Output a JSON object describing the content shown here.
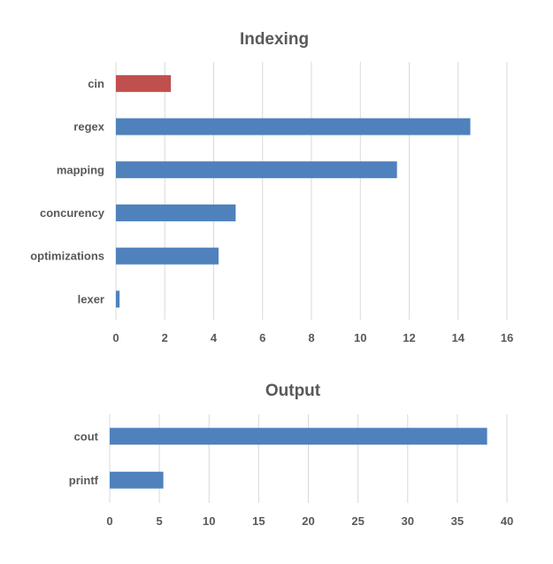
{
  "chart_data": [
    {
      "type": "bar",
      "orientation": "horizontal",
      "title": "Indexing",
      "categories": [
        "cin",
        "regex",
        "mapping",
        "concurency",
        "optimizations",
        "lexer"
      ],
      "values": [
        2.25,
        14.5,
        11.5,
        4.9,
        4.2,
        0.15
      ],
      "colors": [
        "#c0504d",
        "#4f81bd",
        "#4f81bd",
        "#4f81bd",
        "#4f81bd",
        "#4f81bd"
      ],
      "xlim": [
        0,
        16
      ],
      "ticks": [
        "0",
        "2",
        "4",
        "6",
        "8",
        "10",
        "12",
        "14",
        "16"
      ],
      "grid": true,
      "legend": "none"
    },
    {
      "type": "bar",
      "orientation": "horizontal",
      "title": "Output",
      "categories": [
        "cout",
        "printf"
      ],
      "values": [
        38,
        5.4
      ],
      "colors": [
        "#4f81bd",
        "#4f81bd"
      ],
      "xlim": [
        0,
        40
      ],
      "ticks": [
        "0",
        "5",
        "10",
        "15",
        "20",
        "25",
        "30",
        "35",
        "40"
      ],
      "grid": true,
      "legend": "none"
    }
  ]
}
